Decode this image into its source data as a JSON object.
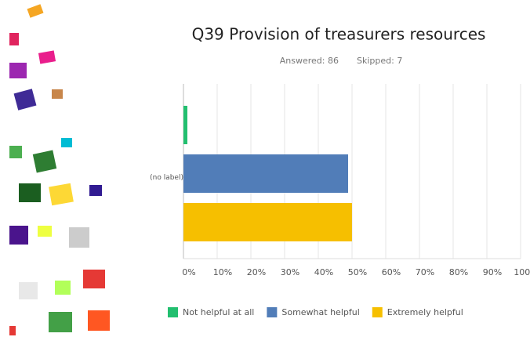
{
  "chart_data": {
    "type": "bar",
    "orientation": "horizontal",
    "title": "Q39 Provision of treasurers resources",
    "subtitle": [
      "Answered: 86",
      "Skipped: 7"
    ],
    "categories": [
      "(no label)"
    ],
    "series": [
      {
        "name": "Not helpful at all",
        "color": "#22bf6f",
        "values": [
          1.16
        ]
      },
      {
        "name": "Somewhat helpful",
        "color": "#517db8",
        "values": [
          48.84
        ]
      },
      {
        "name": "Extremely helpful",
        "color": "#f6bf00",
        "values": [
          50
        ]
      }
    ],
    "xlim": [
      0,
      100
    ],
    "xticks": [
      {
        "value": 0,
        "label": "0%"
      },
      {
        "value": 10,
        "label": "10%"
      },
      {
        "value": 20,
        "label": "20%"
      },
      {
        "value": 30,
        "label": "30%"
      },
      {
        "value": 40,
        "label": "40%"
      },
      {
        "value": 50,
        "label": "50%"
      },
      {
        "value": 60,
        "label": "60%"
      },
      {
        "value": 70,
        "label": "70%"
      },
      {
        "value": 80,
        "label": "80%"
      },
      {
        "value": 90,
        "label": "90%"
      },
      {
        "value": 100,
        "label": "100%"
      }
    ],
    "grid": true
  }
}
